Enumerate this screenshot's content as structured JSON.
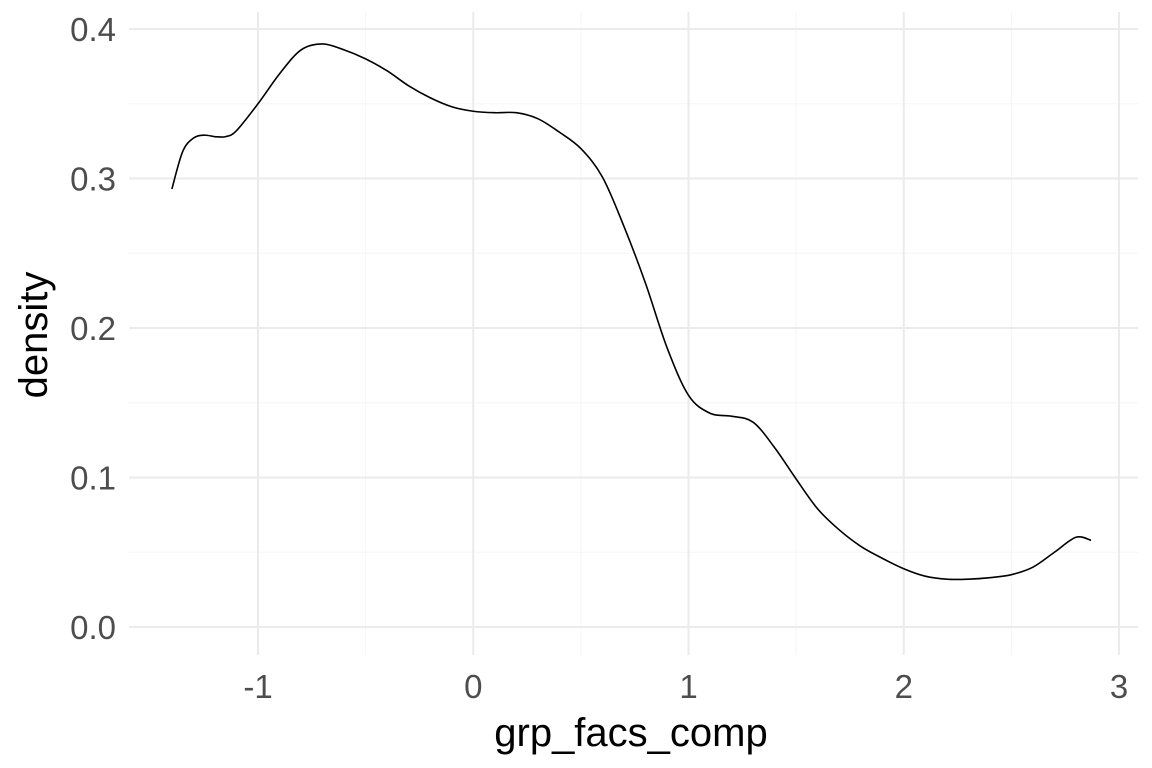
{
  "chart_data": {
    "type": "line",
    "title": "",
    "xlabel": "grp_facs_comp",
    "ylabel": "density",
    "xlim": [
      -1.45,
      3.0
    ],
    "ylim": [
      -0.02,
      0.4
    ],
    "x_ticks": [
      -1,
      0,
      1,
      2,
      3
    ],
    "x_tick_labels": [
      "-1",
      "0",
      "1",
      "2",
      "3"
    ],
    "y_ticks": [
      0.0,
      0.1,
      0.2,
      0.3,
      0.4
    ],
    "y_tick_labels": [
      "0.0",
      "0.1",
      "0.2",
      "0.3",
      "0.4"
    ],
    "grid": true,
    "series": [
      {
        "color": "#000000",
        "x": [
          -1.4,
          -1.35,
          -1.3,
          -1.25,
          -1.2,
          -1.15,
          -1.1,
          -1.0,
          -0.9,
          -0.8,
          -0.7,
          -0.6,
          -0.5,
          -0.4,
          -0.3,
          -0.2,
          -0.1,
          0.0,
          0.1,
          0.2,
          0.3,
          0.4,
          0.5,
          0.6,
          0.7,
          0.8,
          0.9,
          1.0,
          1.1,
          1.2,
          1.3,
          1.4,
          1.5,
          1.6,
          1.7,
          1.8,
          1.9,
          2.0,
          2.1,
          2.2,
          2.3,
          2.4,
          2.5,
          2.6,
          2.7,
          2.8,
          2.87
        ],
        "y": [
          0.293,
          0.318,
          0.327,
          0.329,
          0.328,
          0.328,
          0.332,
          0.35,
          0.37,
          0.386,
          0.39,
          0.386,
          0.38,
          0.372,
          0.362,
          0.354,
          0.348,
          0.345,
          0.344,
          0.344,
          0.34,
          0.331,
          0.32,
          0.301,
          0.268,
          0.23,
          0.187,
          0.155,
          0.143,
          0.141,
          0.137,
          0.12,
          0.099,
          0.079,
          0.065,
          0.054,
          0.046,
          0.039,
          0.034,
          0.032,
          0.032,
          0.033,
          0.035,
          0.04,
          0.05,
          0.06,
          0.058
        ]
      }
    ]
  }
}
